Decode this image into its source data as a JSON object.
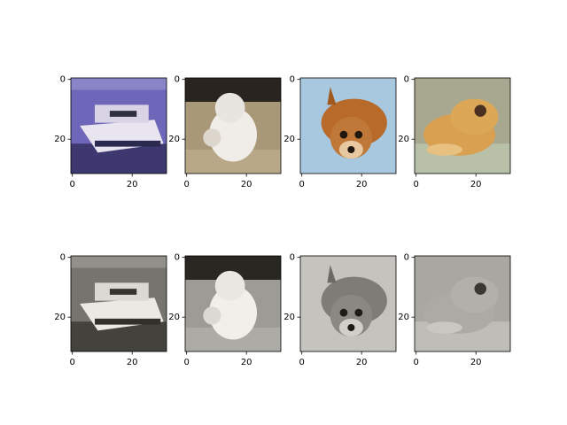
{
  "chart_data": [
    {
      "type": "image",
      "xlim": [
        -0.5,
        31.5
      ],
      "ylim": [
        31.5,
        -0.5
      ],
      "xticks": [
        0,
        20
      ],
      "yticks": [
        0,
        20
      ]
    },
    {
      "type": "image",
      "xlim": [
        -0.5,
        31.5
      ],
      "ylim": [
        31.5,
        -0.5
      ],
      "xticks": [
        0,
        20
      ],
      "yticks": [
        0,
        20
      ]
    },
    {
      "type": "image",
      "xlim": [
        -0.5,
        31.5
      ],
      "ylim": [
        31.5,
        -0.5
      ],
      "xticks": [
        0,
        20
      ],
      "yticks": [
        0,
        20
      ]
    },
    {
      "type": "image",
      "xlim": [
        -0.5,
        31.5
      ],
      "ylim": [
        31.5,
        -0.5
      ],
      "xticks": [
        0,
        20
      ],
      "yticks": [
        0,
        20
      ]
    },
    {
      "type": "image",
      "xlim": [
        -0.5,
        31.5
      ],
      "ylim": [
        31.5,
        -0.5
      ],
      "xticks": [
        0,
        20
      ],
      "yticks": [
        0,
        20
      ]
    },
    {
      "type": "image",
      "xlim": [
        -0.5,
        31.5
      ],
      "ylim": [
        31.5,
        -0.5
      ],
      "xticks": [
        0,
        20
      ],
      "yticks": [
        0,
        20
      ]
    },
    {
      "type": "image",
      "xlim": [
        -0.5,
        31.5
      ],
      "ylim": [
        31.5,
        -0.5
      ],
      "xticks": [
        0,
        20
      ],
      "yticks": [
        0,
        20
      ]
    },
    {
      "type": "image",
      "xlim": [
        -0.5,
        31.5
      ],
      "ylim": [
        31.5,
        -0.5
      ],
      "xticks": [
        0,
        20
      ],
      "yticks": [
        0,
        20
      ]
    }
  ]
}
